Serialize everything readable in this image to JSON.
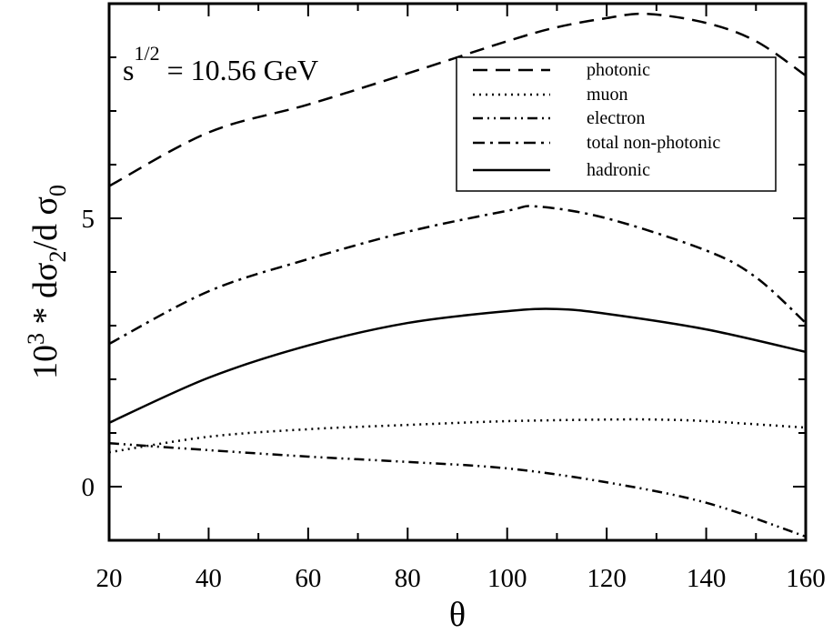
{
  "chart_data": {
    "type": "line",
    "title": "",
    "xlabel": "θ",
    "ylabel": {
      "prefix": "10",
      "exp": "3",
      "mid": " * dσ",
      "sub1": "2",
      "mid2": "/d σ",
      "sub2": "0"
    },
    "annotation": {
      "base": "s",
      "sup": "1/2",
      "rest": " = 10.56 GeV"
    },
    "xlim": [
      20,
      160
    ],
    "ylim": [
      -1,
      9
    ],
    "xticks": [
      20,
      40,
      60,
      80,
      100,
      120,
      140,
      160
    ],
    "xtick_labels": [
      "20",
      "40",
      "60",
      "80",
      "100",
      "120",
      "140",
      "160"
    ],
    "yticks": [
      0,
      5
    ],
    "ytick_labels": [
      "0",
      "5"
    ],
    "legend_position": "top-right",
    "series": [
      {
        "name": "photonic",
        "style": "dashed",
        "x": [
          20,
          40,
          60,
          80,
          100,
          110,
          120,
          128,
          140,
          150,
          160
        ],
        "y": [
          5.6,
          6.6,
          7.12,
          7.7,
          8.3,
          8.56,
          8.73,
          8.81,
          8.64,
          8.3,
          7.66
        ]
      },
      {
        "name": "muon",
        "style": "dotted",
        "x": [
          20,
          40,
          60,
          80,
          100,
          120,
          130,
          140,
          160
        ],
        "y": [
          0.64,
          0.93,
          1.07,
          1.15,
          1.22,
          1.25,
          1.25,
          1.22,
          1.1
        ]
      },
      {
        "name": "electron",
        "style": "dash-dot-dot",
        "x": [
          20,
          40,
          60,
          80,
          100,
          120,
          140,
          160
        ],
        "y": [
          0.81,
          0.68,
          0.56,
          0.46,
          0.34,
          0.08,
          -0.3,
          -0.93
        ]
      },
      {
        "name": "total non-photonic",
        "style": "dash-dot",
        "x": [
          20,
          40,
          60,
          80,
          100,
          106,
          120,
          140,
          150,
          160
        ],
        "y": [
          2.66,
          3.64,
          4.24,
          4.75,
          5.14,
          5.22,
          5.0,
          4.4,
          3.9,
          3.05
        ]
      },
      {
        "name": "hadronic",
        "style": "solid",
        "x": [
          20,
          40,
          60,
          80,
          100,
          110,
          120,
          140,
          160
        ],
        "y": [
          1.19,
          2.03,
          2.63,
          3.05,
          3.27,
          3.31,
          3.22,
          2.93,
          2.51
        ]
      }
    ]
  }
}
